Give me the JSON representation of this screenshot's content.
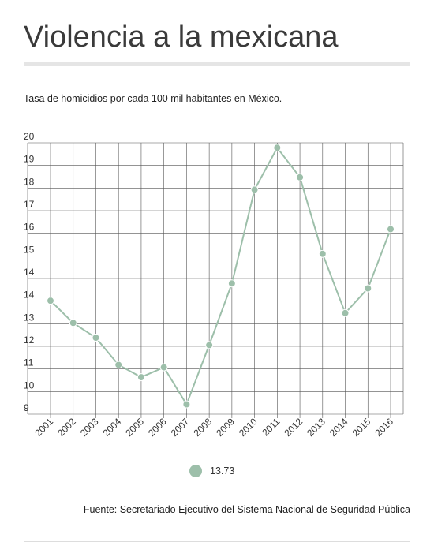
{
  "header": {
    "title": "Violencia a la mexicana",
    "subtitle": "Tasa de homicidios por cada 100 mil habitantes en México."
  },
  "footer": {
    "source": "Fuente: Secretariado Ejecutivo del Sistema Nacional de Seguridad Pública"
  },
  "colors": {
    "series": "#9dbfaa",
    "grid": "#555555",
    "background": "#ffffff"
  },
  "chart_data": {
    "type": "line",
    "categories": [
      "2001",
      "2002",
      "2003",
      "2004",
      "2005",
      "2006",
      "2007",
      "2008",
      "2009",
      "2010",
      "2011",
      "2012",
      "2013",
      "2014",
      "2015",
      "2016"
    ],
    "y_tick_labels": [
      "9",
      "10",
      "11",
      "12",
      "13",
      "14",
      "14",
      "15",
      "16",
      "17",
      "18",
      "19",
      "20"
    ],
    "series": [
      {
        "name": "13.73",
        "values": [
          13.6,
          12.7,
          12.1,
          11.0,
          10.5,
          10.9,
          9.4,
          11.8,
          14.3,
          18.1,
          19.8,
          18.6,
          15.5,
          13.1,
          14.1,
          16.5
        ]
      }
    ],
    "ylim": [
      9,
      20
    ],
    "grid": true,
    "legend_position": "bottom-center"
  }
}
